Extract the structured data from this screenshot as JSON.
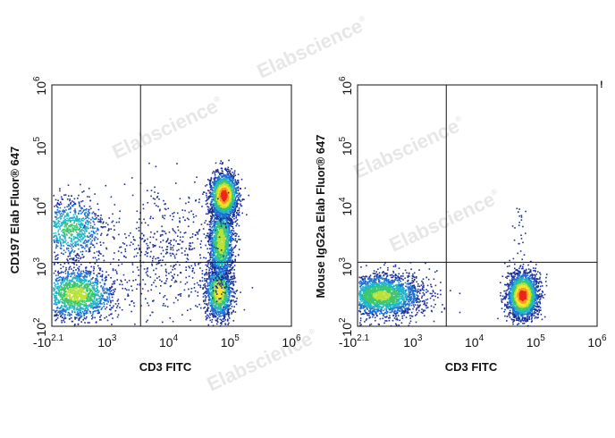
{
  "watermark": {
    "text": "Elabscience",
    "mark": "®"
  },
  "marker": "!",
  "colors": {
    "gate_line": "#111111",
    "density_scale": [
      "#1a2f9a",
      "#1f6fd1",
      "#21b6c8",
      "#3ec76a",
      "#b8e23a",
      "#ffe52a",
      "#ff9a1c",
      "#e8261b"
    ]
  },
  "chart_data": [
    {
      "type": "scatter",
      "subtype": "flow-cytometry-density-dot-plot",
      "xlabel": "CD3 FITC",
      "ylabel": "CD197 Elab Fluor® 647",
      "x_scale": "biexponential",
      "y_scale": "log",
      "xlim": [
        -126,
        1000000
      ],
      "ylim": [
        100,
        1000000
      ],
      "x_ticks": [
        {
          "value": -126,
          "base": "-10",
          "exp": "2.1"
        },
        {
          "value": 1000,
          "base": "10",
          "exp": "3"
        },
        {
          "value": 10000,
          "base": "10",
          "exp": "4"
        },
        {
          "value": 100000,
          "base": "10",
          "exp": "5"
        },
        {
          "value": 1000000,
          "base": "10",
          "exp": "6"
        }
      ],
      "y_ticks": [
        {
          "value": 100,
          "base": "10",
          "exp": "2"
        },
        {
          "value": 1000,
          "base": "10",
          "exp": "3"
        },
        {
          "value": 10000,
          "base": "10",
          "exp": "4"
        },
        {
          "value": 100000,
          "base": "10",
          "exp": "5"
        },
        {
          "value": 1000000,
          "base": "10",
          "exp": "6"
        }
      ],
      "quadrant_gate": {
        "x": 3500,
        "y": 1150
      },
      "populations": [
        {
          "x_center": 310,
          "y_center": 350,
          "x_spread_decades": 0.32,
          "y_spread_decades": 0.22,
          "events": 1700,
          "peak_density": 0.58
        },
        {
          "x_center": 250,
          "y_center": 4200,
          "x_spread_decades": 0.3,
          "y_spread_decades": 0.26,
          "events": 900,
          "peak_density": 0.42
        },
        {
          "x_center": 65000,
          "y_center": 380,
          "x_spread_decades": 0.11,
          "y_spread_decades": 0.22,
          "events": 1400,
          "peak_density": 0.7
        },
        {
          "x_center": 70000,
          "y_center": 2600,
          "x_spread_decades": 0.1,
          "y_spread_decades": 0.32,
          "events": 1700,
          "peak_density": 0.62
        },
        {
          "x_center": 78000,
          "y_center": 15000,
          "x_spread_decades": 0.11,
          "y_spread_decades": 0.18,
          "events": 1900,
          "peak_density": 1.0
        },
        {
          "x_center": 9000,
          "y_center": 1500,
          "x_spread_decades": 0.45,
          "y_spread_decades": 0.55,
          "events": 500,
          "peak_density": 0.12
        }
      ]
    },
    {
      "type": "scatter",
      "subtype": "flow-cytometry-density-dot-plot",
      "xlabel": "CD3 FITC",
      "ylabel": "Mouse IgG2a Elab Fluor® 647",
      "x_scale": "biexponential",
      "y_scale": "log",
      "xlim": [
        -126,
        1000000
      ],
      "ylim": [
        100,
        1000000
      ],
      "x_ticks": [
        {
          "value": -126,
          "base": "-10",
          "exp": "2.1"
        },
        {
          "value": 1000,
          "base": "10",
          "exp": "3"
        },
        {
          "value": 10000,
          "base": "10",
          "exp": "4"
        },
        {
          "value": 100000,
          "base": "10",
          "exp": "5"
        },
        {
          "value": 1000000,
          "base": "10",
          "exp": "6"
        }
      ],
      "y_ticks": [
        {
          "value": 100,
          "base": "10",
          "exp": "2"
        },
        {
          "value": 1000,
          "base": "10",
          "exp": "3"
        },
        {
          "value": 10000,
          "base": "10",
          "exp": "4"
        },
        {
          "value": 100000,
          "base": "10",
          "exp": "5"
        },
        {
          "value": 1000000,
          "base": "10",
          "exp": "6"
        }
      ],
      "quadrant_gate": {
        "x": 3500,
        "y": 1150
      },
      "populations": [
        {
          "x_center": 300,
          "y_center": 330,
          "x_spread_decades": 0.34,
          "y_spread_decades": 0.18,
          "events": 2400,
          "peak_density": 0.55
        },
        {
          "x_center": 60000,
          "y_center": 330,
          "x_spread_decades": 0.12,
          "y_spread_decades": 0.18,
          "events": 2600,
          "peak_density": 1.0
        },
        {
          "x_center": 55000,
          "y_center": 3500,
          "x_spread_decades": 0.06,
          "y_spread_decades": 0.3,
          "events": 25,
          "peak_density": 0.05
        }
      ]
    }
  ]
}
